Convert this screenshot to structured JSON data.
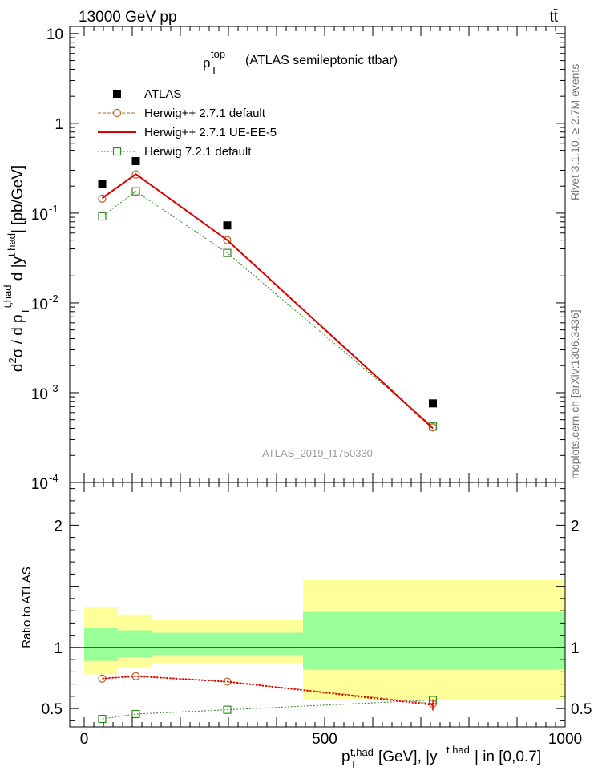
{
  "header": {
    "energy_label": "13000 GeV pp",
    "process_label": "tt̄"
  },
  "side_labels": {
    "rivet": "Rivet 3.1.10, ≥ 2.7M events",
    "mcplots": "mcplots.cern.ch [arXiv:1306.3436]"
  },
  "chart_data": [
    {
      "type": "scatter",
      "panel": "main",
      "title_main": "p",
      "title_sup": "top",
      "title_sub": "T",
      "title_rest": "(ATLAS semileptonic ttbar)",
      "ylabel": "d²σ / d p_T^{t,had} d |y^{t,had}| [pb/GeV]",
      "yscale": "log",
      "ylim": [
        0.0001,
        12
      ],
      "xlim": [
        -30,
        1000
      ],
      "y_ticks": [
        "10",
        "1",
        "10^-1",
        "10^-2",
        "10^-3",
        "10^-4"
      ],
      "watermark": "ATLAS_2019_I1750330",
      "legend_position": "top-left",
      "series": [
        {
          "name": "ATLAS",
          "style": "marker-square-filled",
          "color": "#000000",
          "x": [
            37.5,
            107.5,
            297.5,
            725
          ],
          "y": [
            0.21,
            0.38,
            0.073,
            0.00076
          ]
        },
        {
          "name": "Herwig++ 2.7.1 default",
          "style": "dashed-open-circle",
          "color": "#c06020",
          "x": [
            37.5,
            107.5,
            297.5,
            725
          ],
          "y": [
            0.145,
            0.27,
            0.05,
            0.00041
          ]
        },
        {
          "name": "Herwig++ 2.7.1 UE-EE-5",
          "style": "solid-line",
          "color": "#dd0000",
          "x": [
            37.5,
            107.5,
            297.5,
            725
          ],
          "y": [
            0.147,
            0.272,
            0.05,
            0.0004
          ]
        },
        {
          "name": "Herwig 7.2.1 default",
          "style": "dotted-open-square",
          "color": "#338822",
          "x": [
            37.5,
            107.5,
            297.5,
            725
          ],
          "y": [
            0.092,
            0.175,
            0.036,
            0.00042
          ]
        }
      ]
    },
    {
      "type": "line",
      "panel": "ratio",
      "ylabel": "Ratio to ATLAS",
      "xlabel": "p_T^{t,had} [GeV], |y^{t,had}| in [0,0.7]",
      "xlim": [
        -30,
        1000
      ],
      "ylim": [
        0.35,
        2.35
      ],
      "x_ticks": [
        0,
        500,
        1000
      ],
      "y_ticks": [
        0.5,
        1,
        2
      ],
      "reference_line": 1,
      "uncertainty_bands": [
        {
          "xlo": 0,
          "xhi": 70,
          "yellow": [
            0.78,
            1.33
          ],
          "green": [
            0.89,
            1.16
          ]
        },
        {
          "xlo": 70,
          "xhi": 140,
          "yellow": [
            0.84,
            1.27
          ],
          "green": [
            0.92,
            1.14
          ]
        },
        {
          "xlo": 140,
          "xhi": 455,
          "yellow": [
            0.87,
            1.23
          ],
          "green": [
            0.94,
            1.12
          ]
        },
        {
          "xlo": 455,
          "xhi": 1000,
          "yellow": [
            0.57,
            1.55
          ],
          "green": [
            0.82,
            1.29
          ]
        }
      ],
      "series": [
        {
          "name": "Herwig++ 2.7.1 default",
          "color": "#c06020",
          "x": [
            37.5,
            107.5,
            297.5,
            725
          ],
          "y": [
            0.745,
            0.765,
            0.72,
            0.54
          ]
        },
        {
          "name": "Herwig++ 2.7.1 UE-EE-5",
          "color": "#dd0000",
          "x": [
            37.5,
            107.5,
            297.5,
            725
          ],
          "y": [
            0.745,
            0.765,
            0.72,
            0.53
          ]
        },
        {
          "name": "Herwig 7.2.1 default",
          "color": "#338822",
          "x": [
            37.5,
            107.5,
            297.5,
            725
          ],
          "y": [
            0.415,
            0.455,
            0.49,
            0.57
          ]
        }
      ]
    }
  ]
}
